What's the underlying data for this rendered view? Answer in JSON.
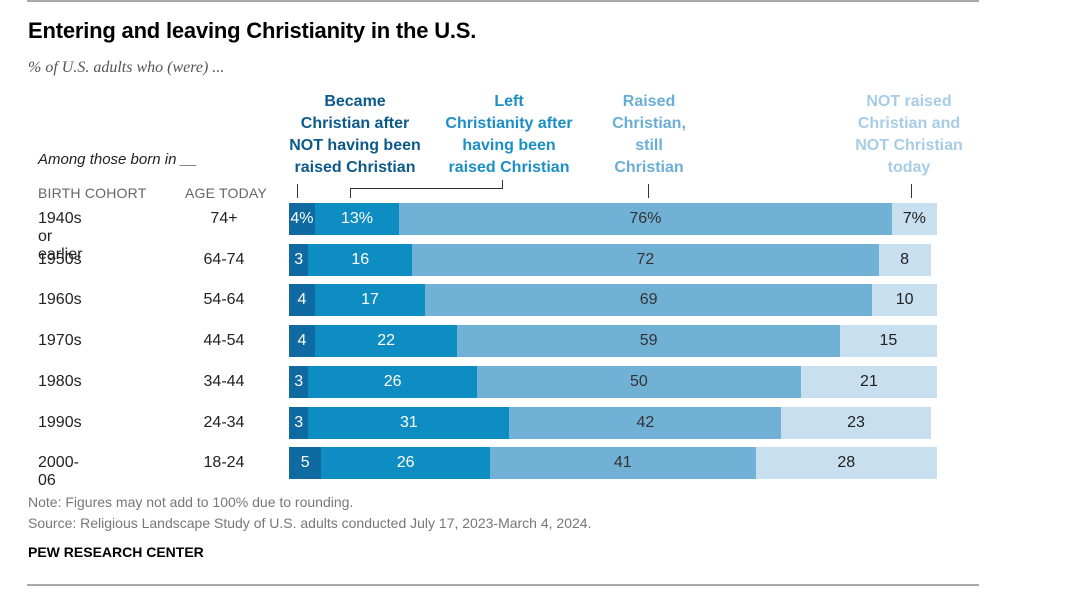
{
  "title": "Entering and leaving Christianity in the U.S.",
  "subtitle": "% of U.S. adults who (were) ...",
  "row_intro": "Among those born in __",
  "column_headers": {
    "birth_cohort": "BIRTH COHORT",
    "age_today": "AGE TODAY"
  },
  "legend": [
    {
      "key": "became",
      "label_lines": [
        "Became",
        "Christian after",
        "NOT having been",
        "raised Christian"
      ],
      "color": "#0f6aa1"
    },
    {
      "key": "left",
      "label_lines": [
        "Left",
        "Christianity after",
        "having been",
        "raised Christian"
      ],
      "color": "#0e8dc3"
    },
    {
      "key": "still",
      "label_lines": [
        "Raised",
        "Christian,",
        "still",
        "Christian"
      ],
      "color": "#71b1d6"
    },
    {
      "key": "never",
      "label_lines": [
        "NOT raised",
        "Christian and",
        "NOT Christian",
        "today"
      ],
      "color": "#c7dfee"
    }
  ],
  "colors": {
    "became": "#0f6aa1",
    "left": "#0e8dc3",
    "still": "#71b1d6",
    "never": "#c7dfee",
    "became_text": "#0b5a89",
    "left_text": "#1a8fc6",
    "still_text": "#6aaed6",
    "never_text": "#a6cce6"
  },
  "chart_data": {
    "type": "bar",
    "orientation": "horizontal",
    "stacked": true,
    "title": "Entering and leaving Christianity in the U.S.",
    "subtitle": "% of U.S. adults who (were) ...",
    "xlabel": "",
    "ylabel": "Among those born in __",
    "xlim": [
      0,
      100
    ],
    "categories": [
      "1940s or earlier",
      "1950s",
      "1960s",
      "1970s",
      "1980s",
      "1990s",
      "2000-06"
    ],
    "ages": [
      "74+",
      "64-74",
      "54-64",
      "44-54",
      "34-44",
      "24-34",
      "18-24"
    ],
    "series": [
      {
        "name": "Became Christian after NOT having been raised Christian",
        "key": "became",
        "values": [
          4,
          3,
          4,
          4,
          3,
          3,
          5
        ]
      },
      {
        "name": "Left Christianity after having been raised Christian",
        "key": "left",
        "values": [
          13,
          16,
          17,
          22,
          26,
          31,
          26
        ]
      },
      {
        "name": "Raised Christian, still Christian",
        "key": "still",
        "values": [
          76,
          72,
          69,
          59,
          50,
          42,
          41
        ]
      },
      {
        "name": "NOT raised Christian and NOT Christian today",
        "key": "never",
        "values": [
          7,
          8,
          10,
          15,
          21,
          23,
          28
        ]
      }
    ],
    "first_row_percent_suffix": true,
    "legend_position": "top",
    "grid": false
  },
  "notes": {
    "note": "Note: Figures may not add to 100% due to rounding.",
    "source": "Source: Religious Landscape Study of U.S. adults conducted July 17, 2023-March 4, 2024."
  },
  "brand": "PEW RESEARCH CENTER"
}
